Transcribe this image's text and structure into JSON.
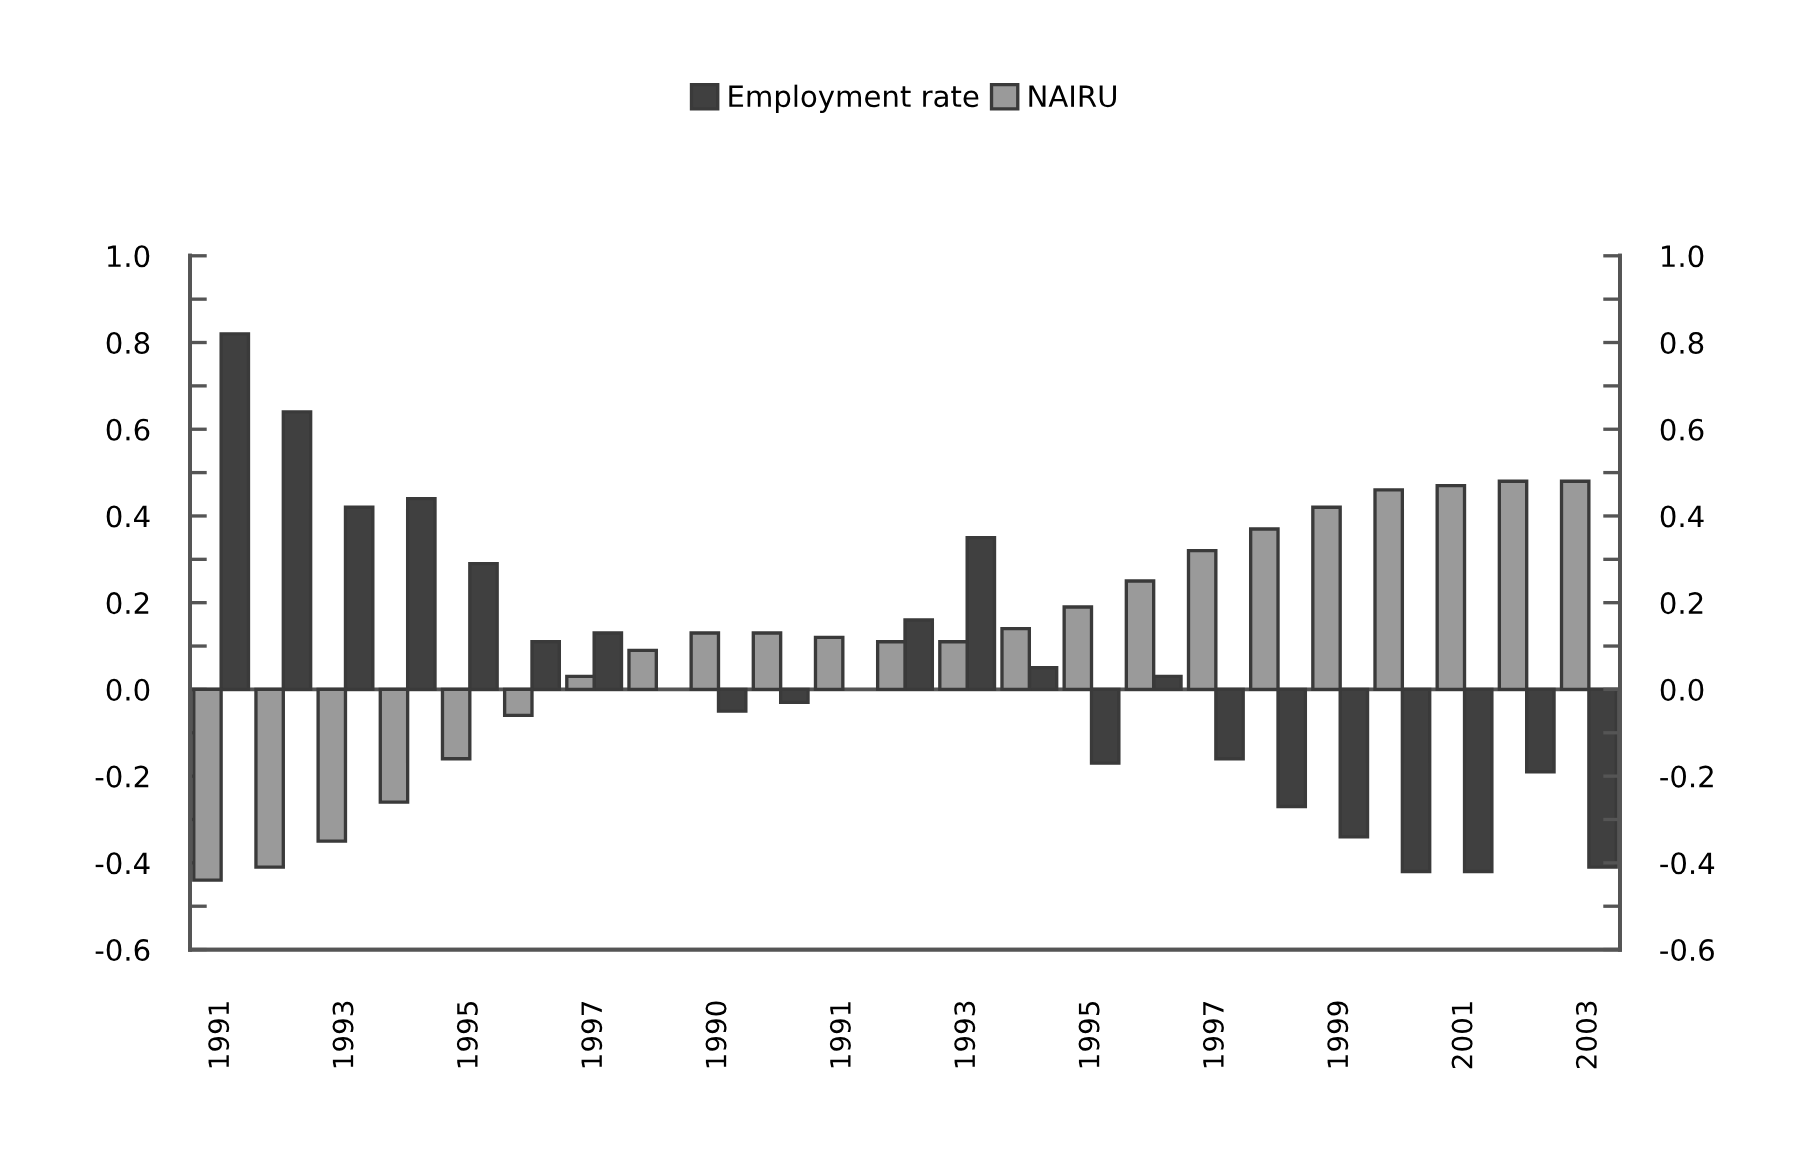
{
  "chart_data": {
    "type": "bar",
    "categories": [
      "1991",
      null,
      "1993",
      null,
      "1995",
      null,
      "1997",
      null,
      "1990",
      null,
      "1991",
      null,
      "1993",
      null,
      "1995",
      null,
      "1997",
      null,
      "1999",
      null,
      "2001",
      null,
      "2003"
    ],
    "series": [
      {
        "name": "Employment rate",
        "color": "#404040",
        "values": [
          0.82,
          0.64,
          0.42,
          0.44,
          0.29,
          0.11,
          0.13,
          null,
          -0.05,
          -0.03,
          null,
          0.16,
          0.35,
          0.05,
          -0.17,
          0.03,
          -0.16,
          -0.27,
          -0.34,
          -0.42,
          -0.42,
          -0.19,
          -0.41
        ]
      },
      {
        "name": "NAIRU",
        "color": "#9a9a9a",
        "values": [
          -0.44,
          -0.41,
          -0.35,
          -0.26,
          -0.16,
          -0.06,
          0.03,
          0.09,
          0.13,
          0.13,
          0.12,
          0.11,
          0.11,
          0.14,
          0.19,
          0.25,
          0.32,
          0.37,
          0.42,
          0.46,
          0.47,
          0.48,
          0.48
        ]
      }
    ],
    "legend": "top",
    "ylim": [
      -0.6,
      1.0
    ],
    "yticks": [
      {
        "value": -0.6,
        "label": "-0.6"
      },
      {
        "value": -0.5,
        "label": null
      },
      {
        "value": -0.4,
        "label": "-0.4"
      },
      {
        "value": -0.3,
        "label": null
      },
      {
        "value": -0.2,
        "label": "-0.2"
      },
      {
        "value": -0.1,
        "label": null
      },
      {
        "value": 0,
        "label": "0.0"
      },
      {
        "value": 0.1,
        "label": null
      },
      {
        "value": 0.2,
        "label": "0.2"
      },
      {
        "value": 0.3,
        "label": null
      },
      {
        "value": 0.4,
        "label": "0.4"
      },
      {
        "value": 0.5,
        "label": null
      },
      {
        "value": 0.6,
        "label": "0.6"
      },
      {
        "value": 0.7,
        "label": null
      },
      {
        "value": 0.8,
        "label": "0.8"
      },
      {
        "value": 0.9,
        "label": null
      },
      {
        "value": 1.0,
        "label": "1.0"
      }
    ],
    "y2lim": [
      -0.6,
      1.0
    ],
    "y2ticks": [
      {
        "value": -0.6,
        "label": "-0.6"
      },
      {
        "value": -0.5,
        "label": null
      },
      {
        "value": -0.4,
        "label": "-0.4"
      },
      {
        "value": -0.3,
        "label": null
      },
      {
        "value": -0.2,
        "label": "-0.2"
      },
      {
        "value": -0.1,
        "label": null
      },
      {
        "value": 0,
        "label": "0.0"
      },
      {
        "value": 0.1,
        "label": null
      },
      {
        "value": 0.2,
        "label": "0.2"
      },
      {
        "value": 0.3,
        "label": null
      },
      {
        "value": 0.4,
        "label": "0.4"
      },
      {
        "value": 0.5,
        "label": null
      },
      {
        "value": 0.6,
        "label": "0.6"
      },
      {
        "value": 0.7,
        "label": null
      },
      {
        "value": 0.8,
        "label": "0.8"
      },
      {
        "value": 0.9,
        "label": null
      },
      {
        "value": 1.0,
        "label": "1.0"
      }
    ],
    "ref_lines": [
      {
        "axis": "y",
        "value": 0,
        "color": "#555555"
      }
    ]
  }
}
